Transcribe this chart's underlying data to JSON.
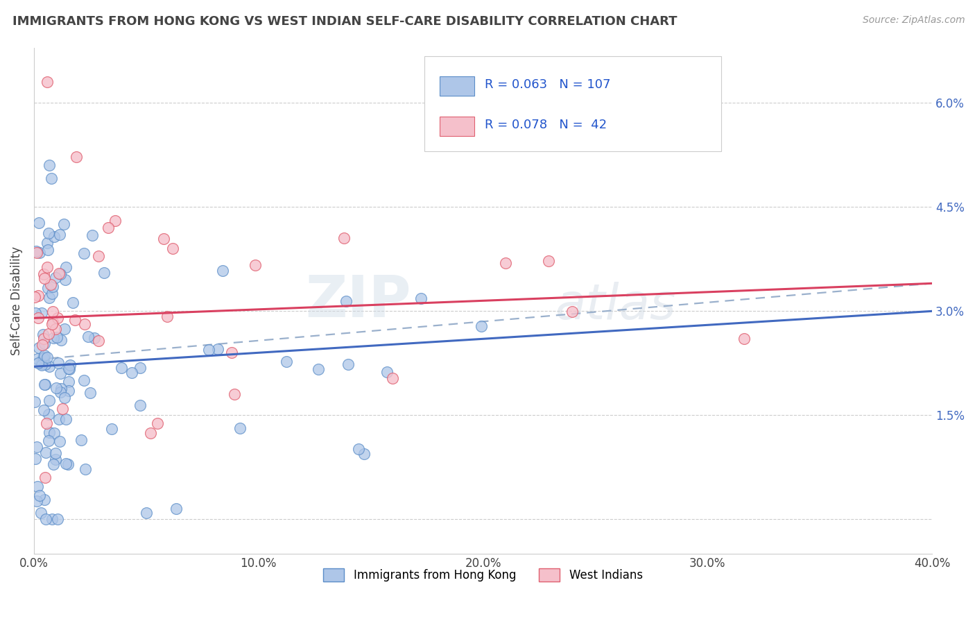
{
  "title": "IMMIGRANTS FROM HONG KONG VS WEST INDIAN SELF-CARE DISABILITY CORRELATION CHART",
  "source_text": "Source: ZipAtlas.com",
  "ylabel": "Self-Care Disability",
  "x_min": 0.0,
  "x_max": 0.4,
  "y_min": -0.005,
  "y_max": 0.068,
  "x_ticks": [
    0.0,
    0.1,
    0.2,
    0.3,
    0.4
  ],
  "x_tick_labels": [
    "0.0%",
    "10.0%",
    "20.0%",
    "30.0%",
    "40.0%"
  ],
  "y_ticks": [
    0.0,
    0.015,
    0.03,
    0.045,
    0.06
  ],
  "y_tick_labels_right": [
    "",
    "1.5%",
    "3.0%",
    "4.5%",
    "6.0%"
  ],
  "hk_R": 0.063,
  "hk_N": 107,
  "wi_R": 0.078,
  "wi_N": 42,
  "hk_color": "#aec6e8",
  "hk_edge_color": "#5b8dc8",
  "wi_color": "#f5c0cb",
  "wi_edge_color": "#e06070",
  "hk_line_color": "#4169c0",
  "wi_line_color": "#d94060",
  "trend_line_color": "#9ab0cc",
  "legend_label_hk": "Immigrants from Hong Kong",
  "legend_label_wi": "West Indians",
  "watermark": "ZIPAtlas",
  "watermark2": "atlas",
  "background_color": "#ffffff",
  "grid_color": "#cccccc",
  "title_color": "#444444",
  "axis_color": "#444444",
  "right_tick_color": "#4169c0",
  "seed": 123
}
